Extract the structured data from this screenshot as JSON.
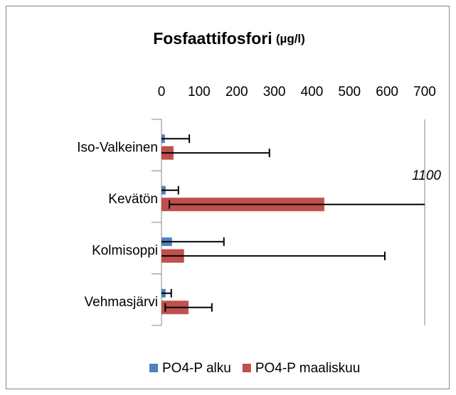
{
  "chart_data": {
    "type": "bar",
    "orientation": "horizontal",
    "title": "Fosfaattifosfori",
    "title_unit": "(µg/l)",
    "categories": [
      "Iso-Valkeinen",
      "Kevätön",
      "Kolmisoppi",
      "Vehmasjärvi"
    ],
    "series": [
      {
        "name": "PO4-P alku",
        "color": "#4f81bd",
        "values": [
          9,
          11,
          28,
          11
        ],
        "errors": [
          65,
          34,
          138,
          15
        ]
      },
      {
        "name": "PO4-P maaliskuu",
        "color": "#c0504d",
        "values": [
          32,
          433,
          60,
          72
        ],
        "errors": [
          255,
          412,
          534,
          62
        ]
      }
    ],
    "xlim": [
      0,
      700
    ],
    "xticks": [
      0,
      100,
      200,
      300,
      400,
      500,
      600,
      700
    ],
    "annotation": "1100",
    "legend": "bottom"
  }
}
